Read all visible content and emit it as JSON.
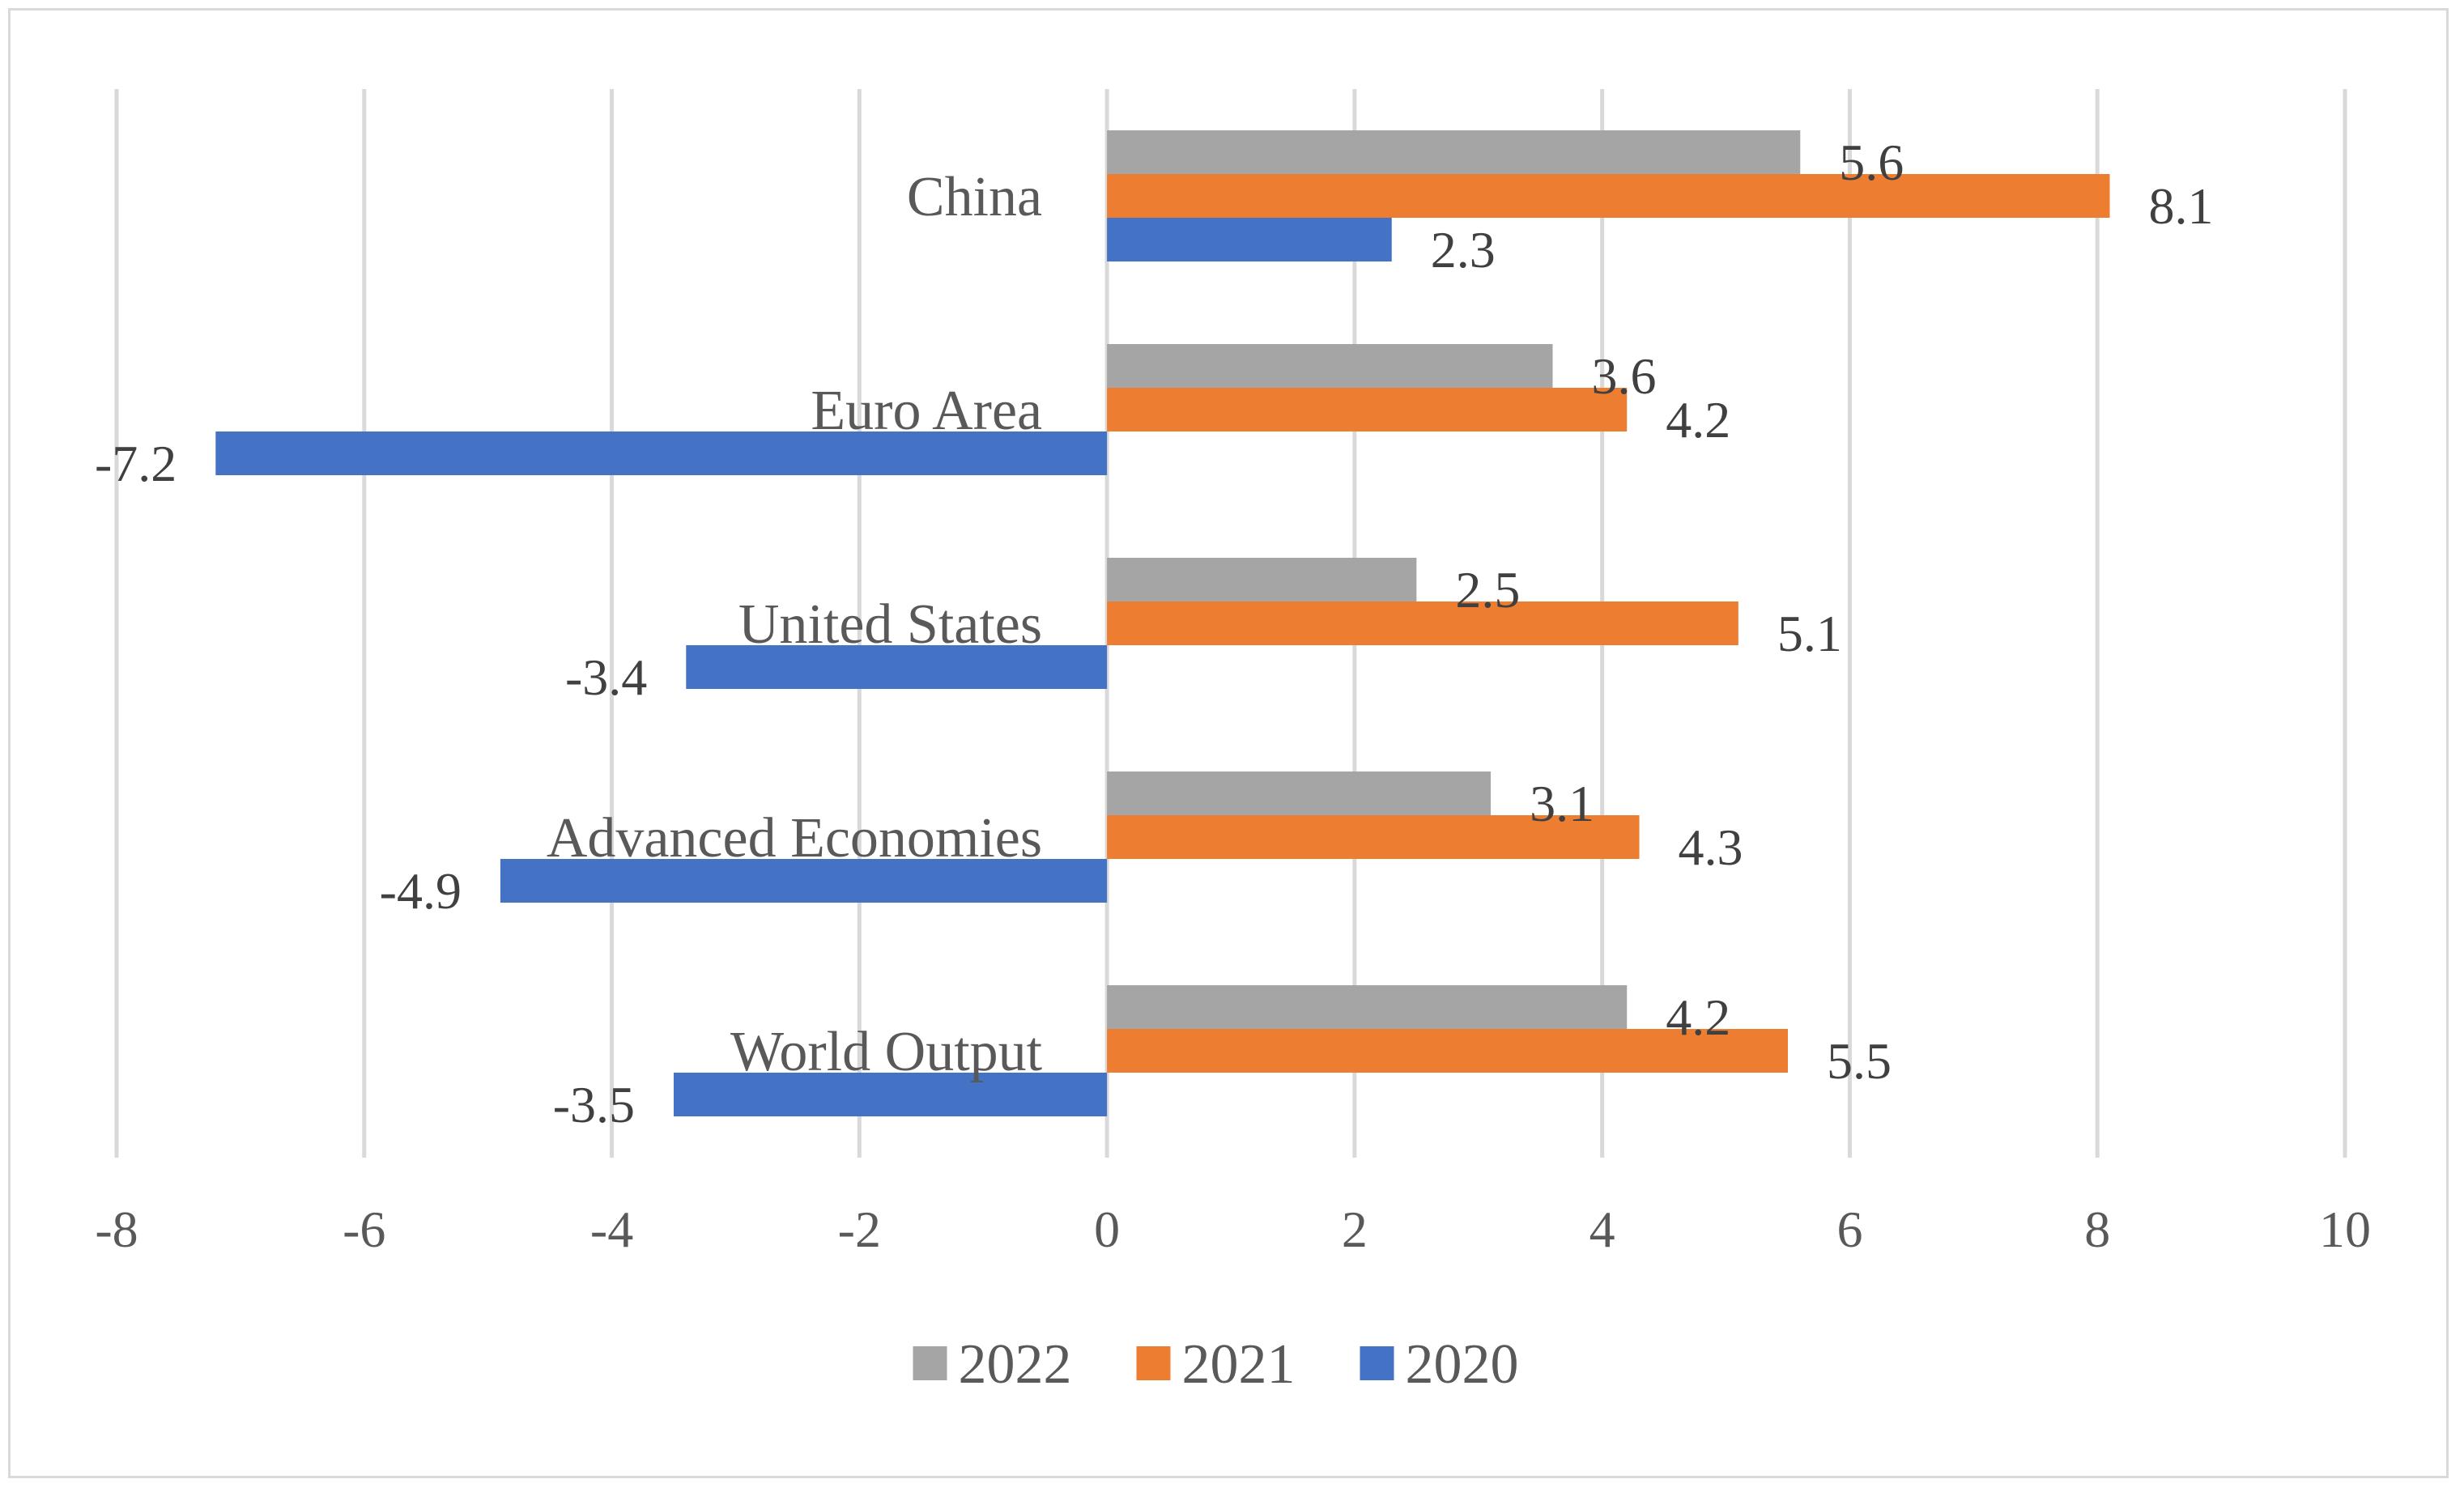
{
  "chart_data": {
    "type": "bar",
    "orientation": "horizontal",
    "title": "",
    "xlabel": "",
    "ylabel": "",
    "xlim": [
      -8,
      10
    ],
    "x_ticks": [
      "-8",
      "-6",
      "-4",
      "-2",
      "0",
      "2",
      "4",
      "6",
      "8",
      "10"
    ],
    "grid": true,
    "legend_position": "bottom",
    "categories": [
      "China",
      "Euro Area",
      "United States",
      "Advanced Economies",
      "World Output"
    ],
    "series": [
      {
        "name": "2022",
        "color": "#a5a5a5",
        "values": [
          5.6,
          3.6,
          2.5,
          3.1,
          4.2
        ],
        "labels": [
          "5.6",
          "3.6",
          "2.5",
          "3.1",
          "4.2"
        ]
      },
      {
        "name": "2021",
        "color": "#ed7d31",
        "values": [
          8.1,
          4.2,
          5.1,
          4.3,
          5.5
        ],
        "labels": [
          "8.1",
          "4.2",
          "5.1",
          "4.3",
          "5.5"
        ]
      },
      {
        "name": "2020",
        "color": "#4472c4",
        "values": [
          2.3,
          -7.2,
          -3.4,
          -4.9,
          -3.5
        ],
        "labels": [
          "2.3",
          "-7.2",
          "-3.4",
          "-4.9",
          "-3.5"
        ]
      }
    ]
  }
}
